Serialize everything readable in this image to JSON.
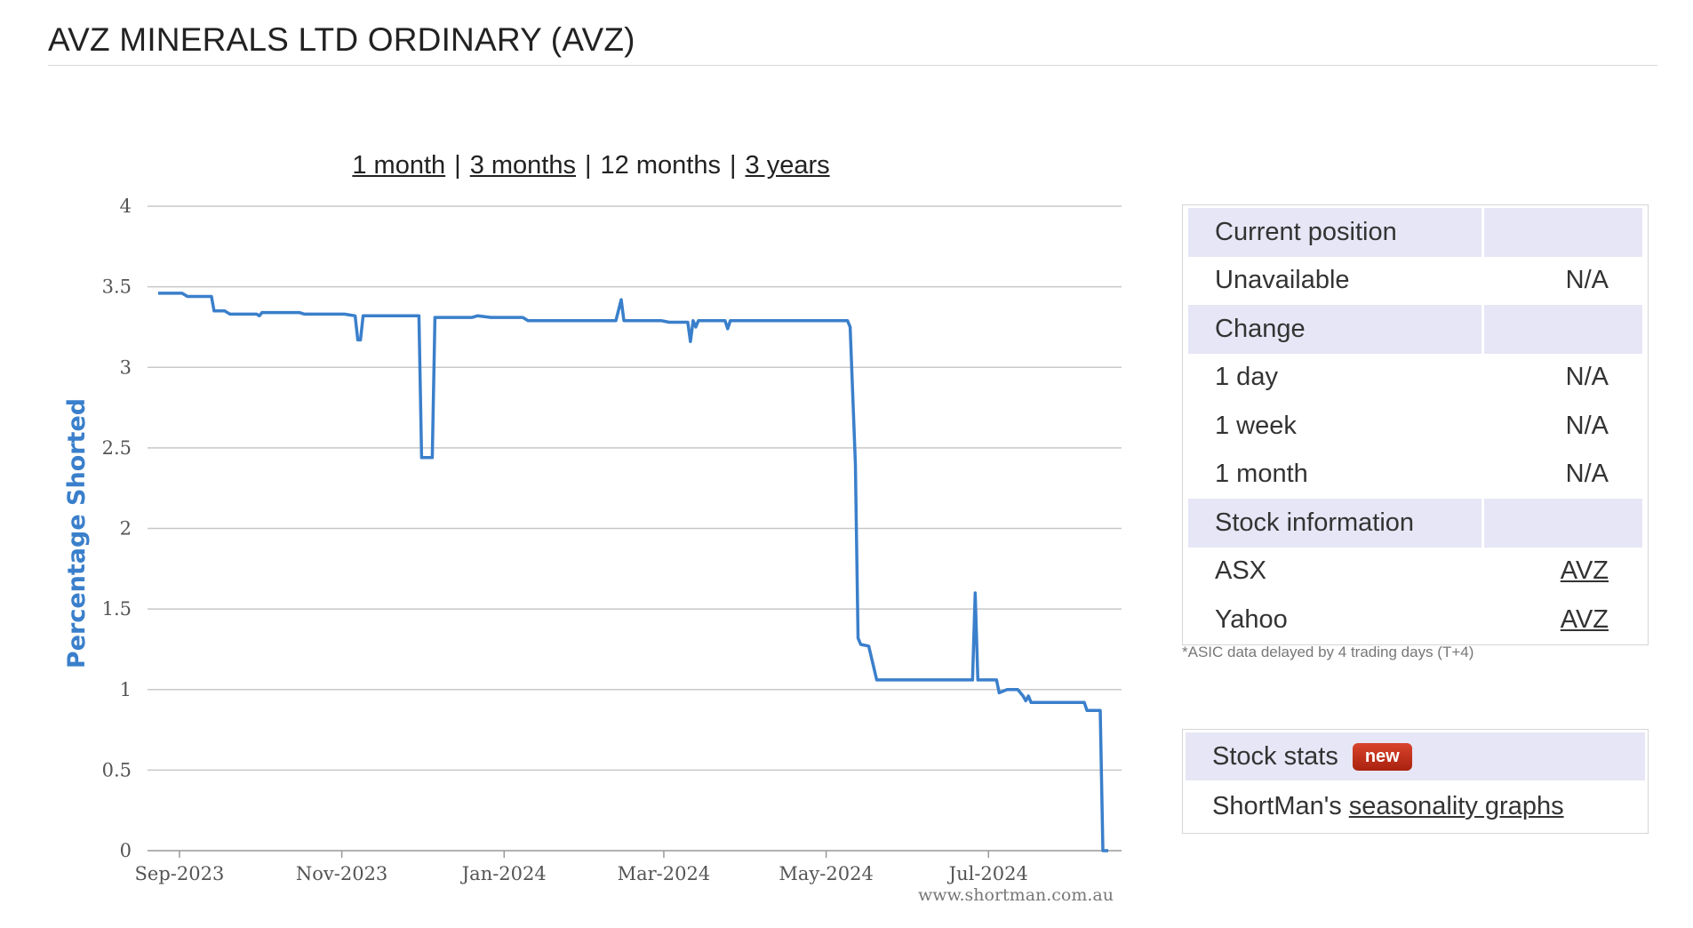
{
  "page": {
    "title": "AVZ MINERALS LTD ORDINARY (AVZ)"
  },
  "range_links": [
    {
      "label": "1 month",
      "active": false
    },
    {
      "label": "3 months",
      "active": false
    },
    {
      "label": "12 months",
      "active": true
    },
    {
      "label": "3 years",
      "active": false
    }
  ],
  "chart_data": {
    "type": "line",
    "title": "",
    "ylabel": "Percentage Shorted",
    "xlabel": "",
    "ylim": [
      0,
      4
    ],
    "yticks": [
      "0",
      "0.5",
      "1",
      "1.5",
      "2",
      "2.5",
      "3",
      "3.5",
      "4"
    ],
    "xticks": [
      {
        "label": "Sep-2023",
        "date": "2023-09-01"
      },
      {
        "label": "Nov-2023",
        "date": "2023-11-01"
      },
      {
        "label": "Jan-2024",
        "date": "2024-01-01"
      },
      {
        "label": "Mar-2024",
        "date": "2024-03-01"
      },
      {
        "label": "May-2024",
        "date": "2024-05-01"
      },
      {
        "label": "Jul-2024",
        "date": "2024-07-01"
      }
    ],
    "xlim": [
      "2023-08-20",
      "2024-08-20"
    ],
    "watermark": "www.shortman.com.au",
    "color": "#3a7fcb",
    "grid": true,
    "series": [
      {
        "points": [
          [
            "2023-08-24",
            3.46
          ],
          [
            "2023-09-02",
            3.46
          ],
          [
            "2023-09-04",
            3.44
          ],
          [
            "2023-09-13",
            3.44
          ],
          [
            "2023-09-14",
            3.35
          ],
          [
            "2023-09-18",
            3.35
          ],
          [
            "2023-09-20",
            3.33
          ],
          [
            "2023-09-30",
            3.33
          ],
          [
            "2023-10-01",
            3.32
          ],
          [
            "2023-10-02",
            3.34
          ],
          [
            "2023-10-16",
            3.34
          ],
          [
            "2023-10-18",
            3.33
          ],
          [
            "2023-10-25",
            3.33
          ],
          [
            "2023-10-27",
            3.33
          ],
          [
            "2023-11-02",
            3.33
          ],
          [
            "2023-11-06",
            3.32
          ],
          [
            "2023-11-07",
            3.17
          ],
          [
            "2023-11-08",
            3.17
          ],
          [
            "2023-11-09",
            3.32
          ],
          [
            "2023-11-30",
            3.32
          ],
          [
            "2023-12-01",
            2.44
          ],
          [
            "2023-12-05",
            2.44
          ],
          [
            "2023-12-06",
            3.31
          ],
          [
            "2023-12-20",
            3.31
          ],
          [
            "2023-12-22",
            3.32
          ],
          [
            "2023-12-27",
            3.31
          ],
          [
            "2024-01-08",
            3.31
          ],
          [
            "2024-01-10",
            3.29
          ],
          [
            "2024-02-12",
            3.29
          ],
          [
            "2024-02-14",
            3.42
          ],
          [
            "2024-02-15",
            3.29
          ],
          [
            "2024-02-29",
            3.29
          ],
          [
            "2024-03-03",
            3.28
          ],
          [
            "2024-03-10",
            3.28
          ],
          [
            "2024-03-11",
            3.16
          ],
          [
            "2024-03-12",
            3.29
          ],
          [
            "2024-03-13",
            3.25
          ],
          [
            "2024-03-14",
            3.29
          ],
          [
            "2024-03-24",
            3.29
          ],
          [
            "2024-03-25",
            3.24
          ],
          [
            "2024-03-26",
            3.29
          ],
          [
            "2024-05-09",
            3.29
          ],
          [
            "2024-05-10",
            3.25
          ],
          [
            "2024-05-12",
            2.4
          ],
          [
            "2024-05-13",
            1.32
          ],
          [
            "2024-05-14",
            1.28
          ],
          [
            "2024-05-17",
            1.27
          ],
          [
            "2024-05-20",
            1.06
          ],
          [
            "2024-06-25",
            1.06
          ],
          [
            "2024-06-26",
            1.6
          ],
          [
            "2024-06-27",
            1.06
          ],
          [
            "2024-07-04",
            1.06
          ],
          [
            "2024-07-05",
            0.98
          ],
          [
            "2024-07-08",
            1.0
          ],
          [
            "2024-07-12",
            1.0
          ],
          [
            "2024-07-14",
            0.96
          ],
          [
            "2024-07-15",
            0.93
          ],
          [
            "2024-07-16",
            0.96
          ],
          [
            "2024-07-17",
            0.92
          ],
          [
            "2024-08-06",
            0.92
          ],
          [
            "2024-08-07",
            0.87
          ],
          [
            "2024-08-12",
            0.87
          ],
          [
            "2024-08-13",
            0.0
          ],
          [
            "2024-08-15",
            0.0
          ]
        ]
      }
    ]
  },
  "position_panel": {
    "current_header": "Current position",
    "unavailable_label": "Unavailable",
    "unavailable_value": "N/A",
    "change_header": "Change",
    "day_label": "1 day",
    "day_value": "N/A",
    "week_label": "1 week",
    "week_value": "N/A",
    "month_label": "1 month",
    "month_value": "N/A",
    "stockinfo_header": "Stock information",
    "asx_label": "ASX",
    "asx_link": "AVZ",
    "yahoo_label": "Yahoo",
    "yahoo_link": "AVZ"
  },
  "footnote": "*ASIC data delayed by 4 trading days (T+4)",
  "stats_panel": {
    "header": "Stock stats",
    "badge": "new",
    "body_prefix": "ShortMan's",
    "link": "seasonality graphs"
  }
}
